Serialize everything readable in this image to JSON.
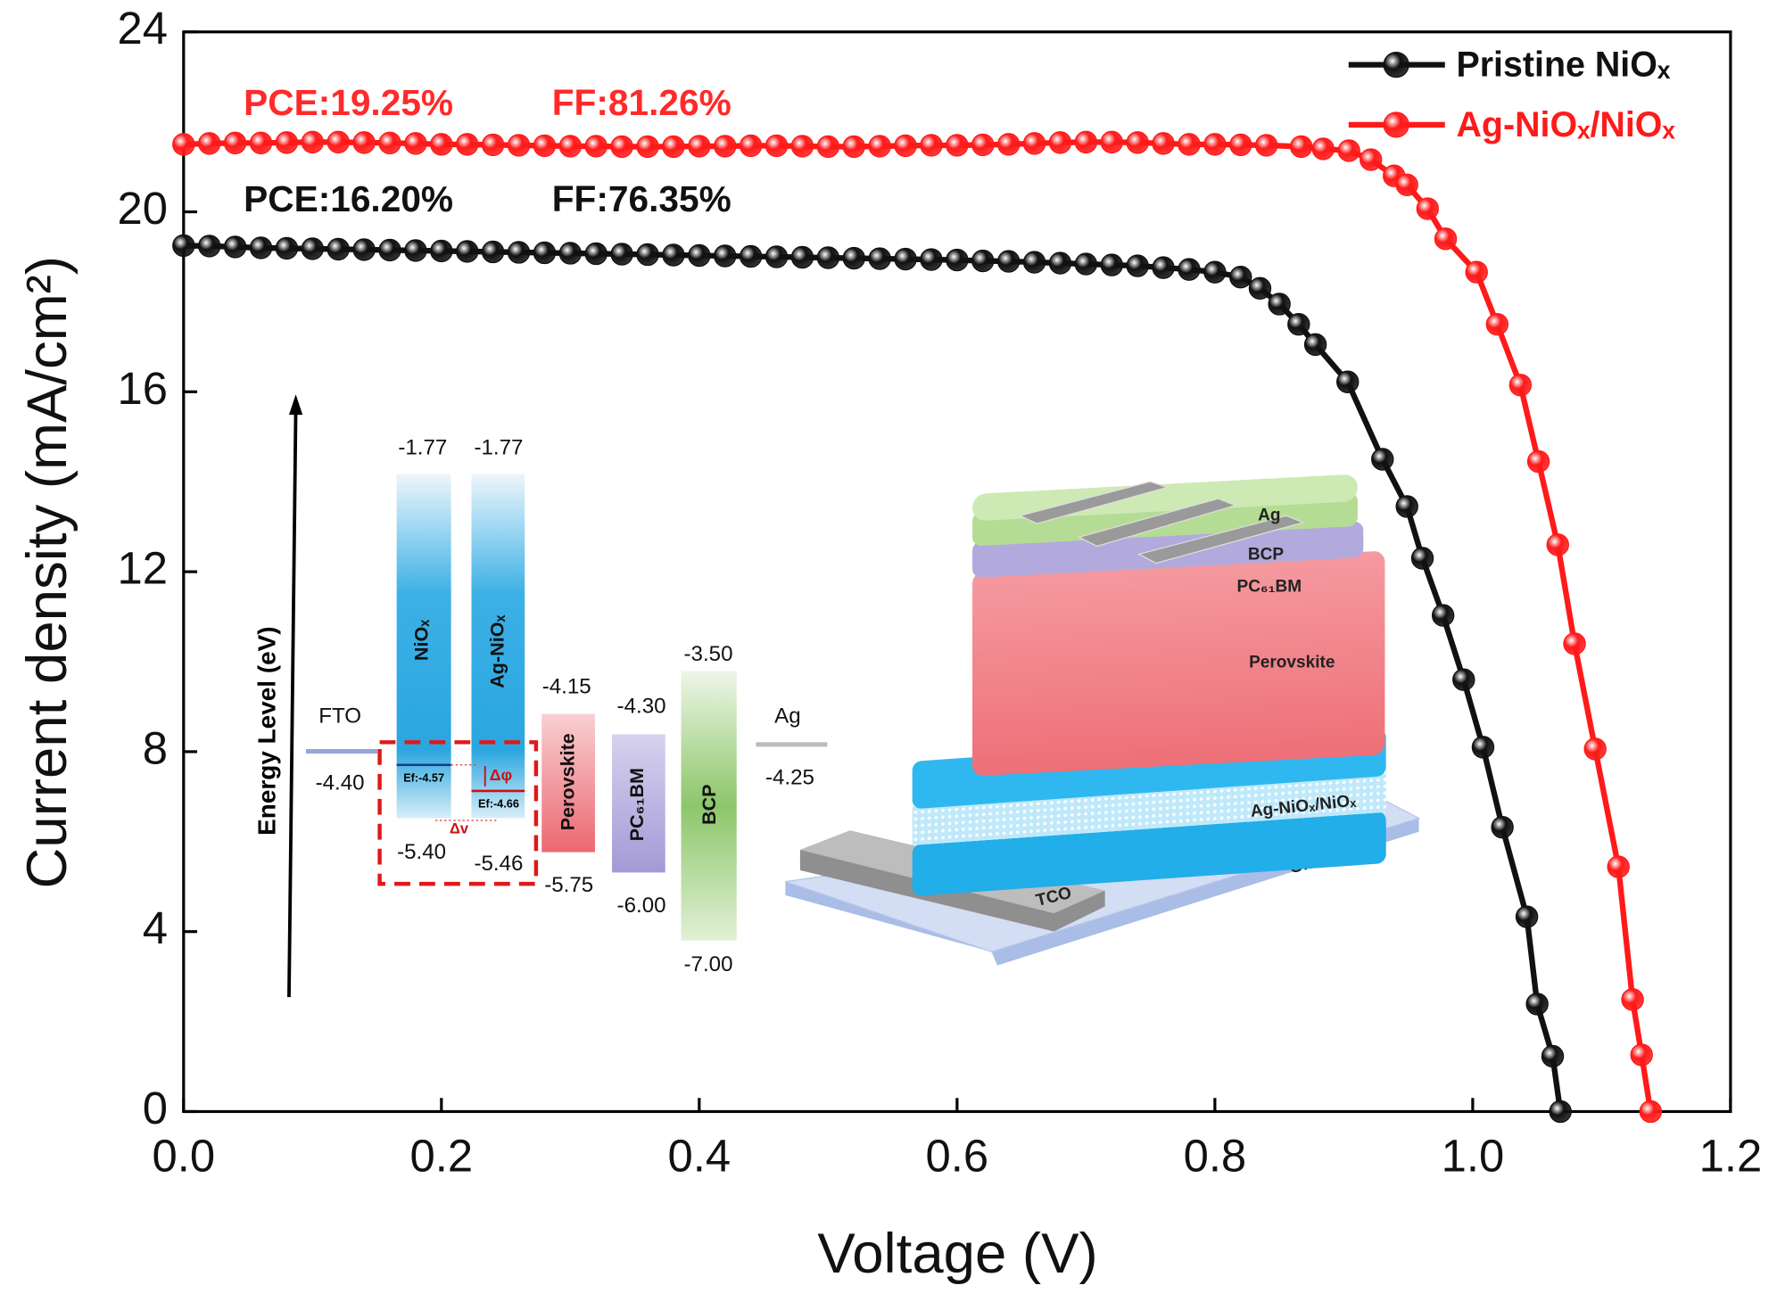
{
  "chart_data": {
    "type": "line",
    "xlabel": "Voltage (V)",
    "ylabel": "Current density (mA/cm²)",
    "xlim": [
      0,
      1.2
    ],
    "ylim": [
      0,
      24
    ],
    "xticks": [
      {
        "value": 0,
        "label": "0.0"
      },
      0.2,
      0.4,
      0.6,
      0.8,
      {
        "value": 1,
        "label": "1.0"
      },
      1.2
    ],
    "yticks": [
      0,
      4,
      8,
      12,
      16,
      20,
      24
    ],
    "legend": "upper right",
    "annotations": [
      {
        "text": "PCE:19.25%",
        "color": "#ff2a2a"
      },
      {
        "text": "FF:81.26%",
        "color": "#ff2a2a"
      },
      {
        "text": "PCE:16.20%",
        "color": "#111111"
      },
      {
        "text": "FF:76.35%",
        "color": "#111111"
      }
    ],
    "series": [
      {
        "name": "Pristine NiOₓ",
        "color": "#111111",
        "x": [
          0,
          0.02,
          0.04,
          0.06,
          0.08,
          0.1,
          0.12,
          0.14,
          0.16,
          0.18,
          0.2,
          0.22,
          0.24,
          0.26,
          0.28,
          0.3,
          0.32,
          0.34,
          0.36,
          0.38,
          0.4,
          0.42,
          0.44,
          0.46,
          0.48,
          0.5,
          0.52,
          0.54,
          0.56,
          0.58,
          0.6,
          0.62,
          0.64,
          0.66,
          0.68,
          0.7,
          0.72,
          0.74,
          0.76,
          0.78,
          0.8,
          0.82,
          0.835,
          0.85,
          0.865,
          0.878,
          0.903,
          0.93,
          0.949,
          0.961,
          0.977,
          0.993,
          1.008,
          1.023,
          1.042,
          1.05,
          1.062,
          1.068
        ],
        "values": [
          19.25,
          19.24,
          19.22,
          19.2,
          19.19,
          19.18,
          19.17,
          19.16,
          19.15,
          19.14,
          19.13,
          19.12,
          19.11,
          19.1,
          19.09,
          19.08,
          19.07,
          19.06,
          19.05,
          19.04,
          19.03,
          19.02,
          19.01,
          19.0,
          18.99,
          18.98,
          18.97,
          18.96,
          18.95,
          18.94,
          18.93,
          18.91,
          18.9,
          18.88,
          18.86,
          18.84,
          18.82,
          18.8,
          18.76,
          18.72,
          18.66,
          18.55,
          18.3,
          17.95,
          17.5,
          17.05,
          16.22,
          14.5,
          13.45,
          12.3,
          11.03,
          9.6,
          8.1,
          6.32,
          4.33,
          2.39,
          1.23,
          0
        ]
      },
      {
        "name": "Ag-NiOₓ/NiOₓ",
        "color": "#ff1a1a",
        "x": [
          0,
          0.02,
          0.04,
          0.06,
          0.08,
          0.1,
          0.12,
          0.14,
          0.16,
          0.18,
          0.2,
          0.22,
          0.24,
          0.26,
          0.28,
          0.3,
          0.32,
          0.34,
          0.36,
          0.38,
          0.4,
          0.42,
          0.44,
          0.46,
          0.48,
          0.5,
          0.52,
          0.54,
          0.56,
          0.58,
          0.6,
          0.62,
          0.64,
          0.66,
          0.68,
          0.7,
          0.72,
          0.74,
          0.76,
          0.78,
          0.8,
          0.82,
          0.84,
          0.867,
          0.884,
          0.904,
          0.921,
          0.939,
          0.949,
          0.965,
          0.979,
          1.003,
          1.019,
          1.037,
          1.051,
          1.066,
          1.079,
          1.095,
          1.113,
          1.124,
          1.131,
          1.138
        ],
        "values": [
          21.5,
          21.52,
          21.53,
          21.53,
          21.54,
          21.55,
          21.55,
          21.54,
          21.53,
          21.52,
          21.5,
          21.5,
          21.49,
          21.48,
          21.47,
          21.46,
          21.46,
          21.45,
          21.45,
          21.45,
          21.46,
          21.46,
          21.47,
          21.47,
          21.46,
          21.45,
          21.45,
          21.46,
          21.47,
          21.48,
          21.48,
          21.49,
          21.5,
          21.52,
          21.54,
          21.55,
          21.55,
          21.54,
          21.52,
          21.5,
          21.5,
          21.49,
          21.48,
          21.45,
          21.4,
          21.36,
          21.16,
          20.8,
          20.6,
          20.07,
          19.4,
          18.66,
          17.5,
          16.15,
          14.45,
          12.6,
          10.4,
          8.06,
          5.44,
          2.49,
          1.26,
          0
        ]
      }
    ]
  },
  "energy_diagram": {
    "axis_label": "Energy Level (eV)",
    "layers": [
      {
        "name": "FTO",
        "levels": [
          "-4.40"
        ]
      },
      {
        "name": "NiOₓ",
        "levels": [
          "-1.77",
          "-5.40"
        ],
        "fermi": "Ef:-4.57"
      },
      {
        "name": "Ag-NiOₓ",
        "levels": [
          "-1.77",
          "-5.46"
        ],
        "fermi": "Ef:-4.66"
      },
      {
        "name": "Perovskite",
        "levels": [
          "-4.15",
          "-5.75"
        ]
      },
      {
        "name": "PC₆₁BM",
        "levels": [
          "-4.30",
          "-6.00"
        ]
      },
      {
        "name": "BCP",
        "levels": [
          "-3.50",
          "-7.00"
        ]
      },
      {
        "name": "Ag",
        "levels": [
          "-4.25"
        ]
      }
    ],
    "shifts": [
      "Δφ",
      "Δv"
    ]
  },
  "device_schematic": {
    "layers": [
      "Ag",
      "BCP",
      "PC₆₁BM",
      "Perovskite",
      "Ag-NiOₓ/NiOₓ",
      "Glass",
      "TCO"
    ]
  }
}
